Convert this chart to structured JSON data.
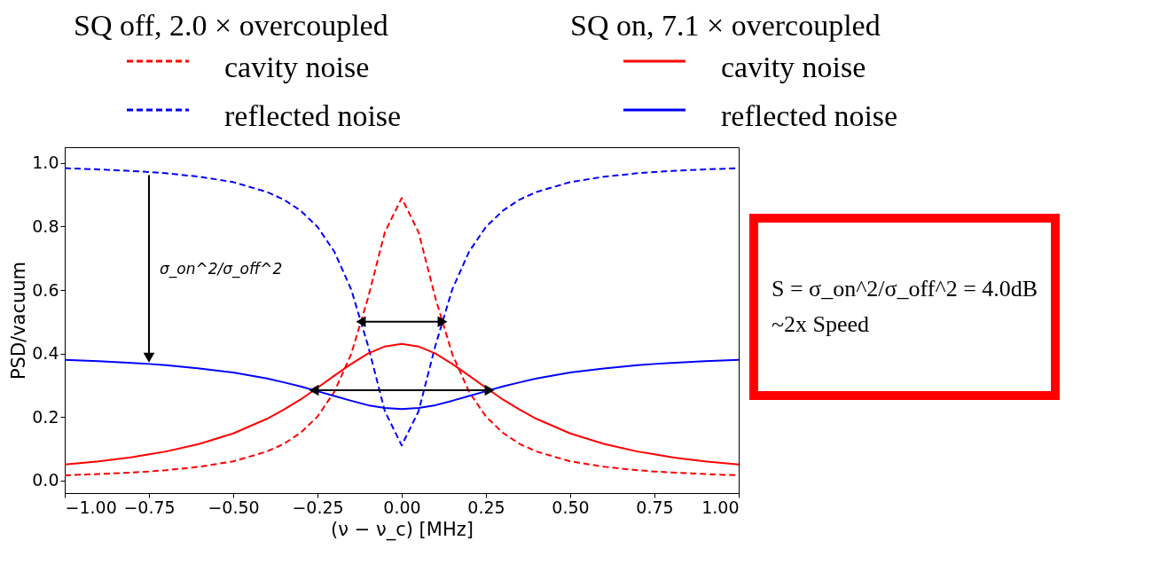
{
  "chart_data": {
    "type": "line",
    "xlabel": "(ν − ν_c) [MHz]",
    "ylabel": "PSD/vacuum",
    "legend_title": [
      "SQ off, 2.0 × overcoupled",
      "SQ on, 7.1 × overcoupled"
    ],
    "legend": "top",
    "grid": false,
    "x": [
      -1.0,
      -0.9,
      -0.8,
      -0.75,
      -0.7,
      -0.6,
      -0.5,
      -0.4,
      -0.35,
      -0.3,
      -0.25,
      -0.2,
      -0.15,
      -0.1,
      -0.05,
      0.0,
      0.05,
      0.1,
      0.15,
      0.2,
      0.25,
      0.3,
      0.35,
      0.4,
      0.5,
      0.6,
      0.7,
      0.75,
      0.8,
      0.9,
      1.0
    ],
    "series": [
      {
        "name": "cavity noise",
        "color": "#ff0000",
        "line_style": "dashed",
        "values": [
          0.016,
          0.02,
          0.025,
          0.028,
          0.032,
          0.043,
          0.06,
          0.091,
          0.115,
          0.15,
          0.201,
          0.279,
          0.398,
          0.575,
          0.782,
          0.89,
          0.782,
          0.575,
          0.398,
          0.279,
          0.201,
          0.15,
          0.115,
          0.091,
          0.06,
          0.043,
          0.032,
          0.028,
          0.025,
          0.02,
          0.016
        ]
      },
      {
        "name": "reflected noise",
        "color": "#0000ff",
        "line_style": "dashed",
        "values": [
          0.984,
          0.98,
          0.975,
          0.972,
          0.968,
          0.957,
          0.94,
          0.909,
          0.885,
          0.85,
          0.799,
          0.721,
          0.602,
          0.425,
          0.218,
          0.11,
          0.218,
          0.425,
          0.602,
          0.721,
          0.799,
          0.85,
          0.885,
          0.909,
          0.94,
          0.957,
          0.968,
          0.972,
          0.975,
          0.98,
          0.984
        ]
      },
      {
        "name": "cavity noise",
        "color": "#ff0000",
        "line_style": "solid",
        "values": [
          0.05,
          0.06,
          0.073,
          0.082,
          0.091,
          0.115,
          0.148,
          0.194,
          0.223,
          0.255,
          0.292,
          0.33,
          0.367,
          0.4,
          0.422,
          0.43,
          0.422,
          0.4,
          0.367,
          0.33,
          0.292,
          0.255,
          0.223,
          0.194,
          0.148,
          0.115,
          0.091,
          0.082,
          0.073,
          0.06,
          0.05
        ]
      },
      {
        "name": "reflected noise",
        "color": "#0000ff",
        "line_style": "solid",
        "values": [
          0.38,
          0.376,
          0.37,
          0.367,
          0.363,
          0.353,
          0.34,
          0.321,
          0.309,
          0.296,
          0.281,
          0.266,
          0.251,
          0.237,
          0.228,
          0.225,
          0.228,
          0.237,
          0.251,
          0.266,
          0.281,
          0.296,
          0.309,
          0.321,
          0.34,
          0.353,
          0.363,
          0.367,
          0.37,
          0.376,
          0.38
        ]
      }
    ],
    "xlim": [
      -1.0,
      1.0
    ],
    "xticks": [
      {
        "value": -1.0,
        "label": "−1.00"
      },
      {
        "value": -0.75,
        "label": "−0.75"
      },
      {
        "value": -0.5,
        "label": "−0.50"
      },
      {
        "value": -0.25,
        "label": "−0.25"
      },
      {
        "value": 0.0,
        "label": "0.00"
      },
      {
        "value": 0.25,
        "label": "0.25"
      },
      {
        "value": 0.5,
        "label": "0.50"
      },
      {
        "value": 0.75,
        "label": "0.75"
      },
      {
        "value": 1.0,
        "label": "1.00"
      }
    ],
    "ylim": [
      -0.04,
      1.05
    ],
    "yticks": [
      {
        "value": 0.0,
        "label": "0.0"
      },
      0.2,
      0.4,
      0.6,
      0.8,
      {
        "value": 1.0,
        "label": "1.0"
      }
    ],
    "annotations": [
      "σ_on^2/σ_off^2",
      "S = σ_on^2/σ_off^2 = 4.0dB",
      "~2x Speed"
    ]
  }
}
